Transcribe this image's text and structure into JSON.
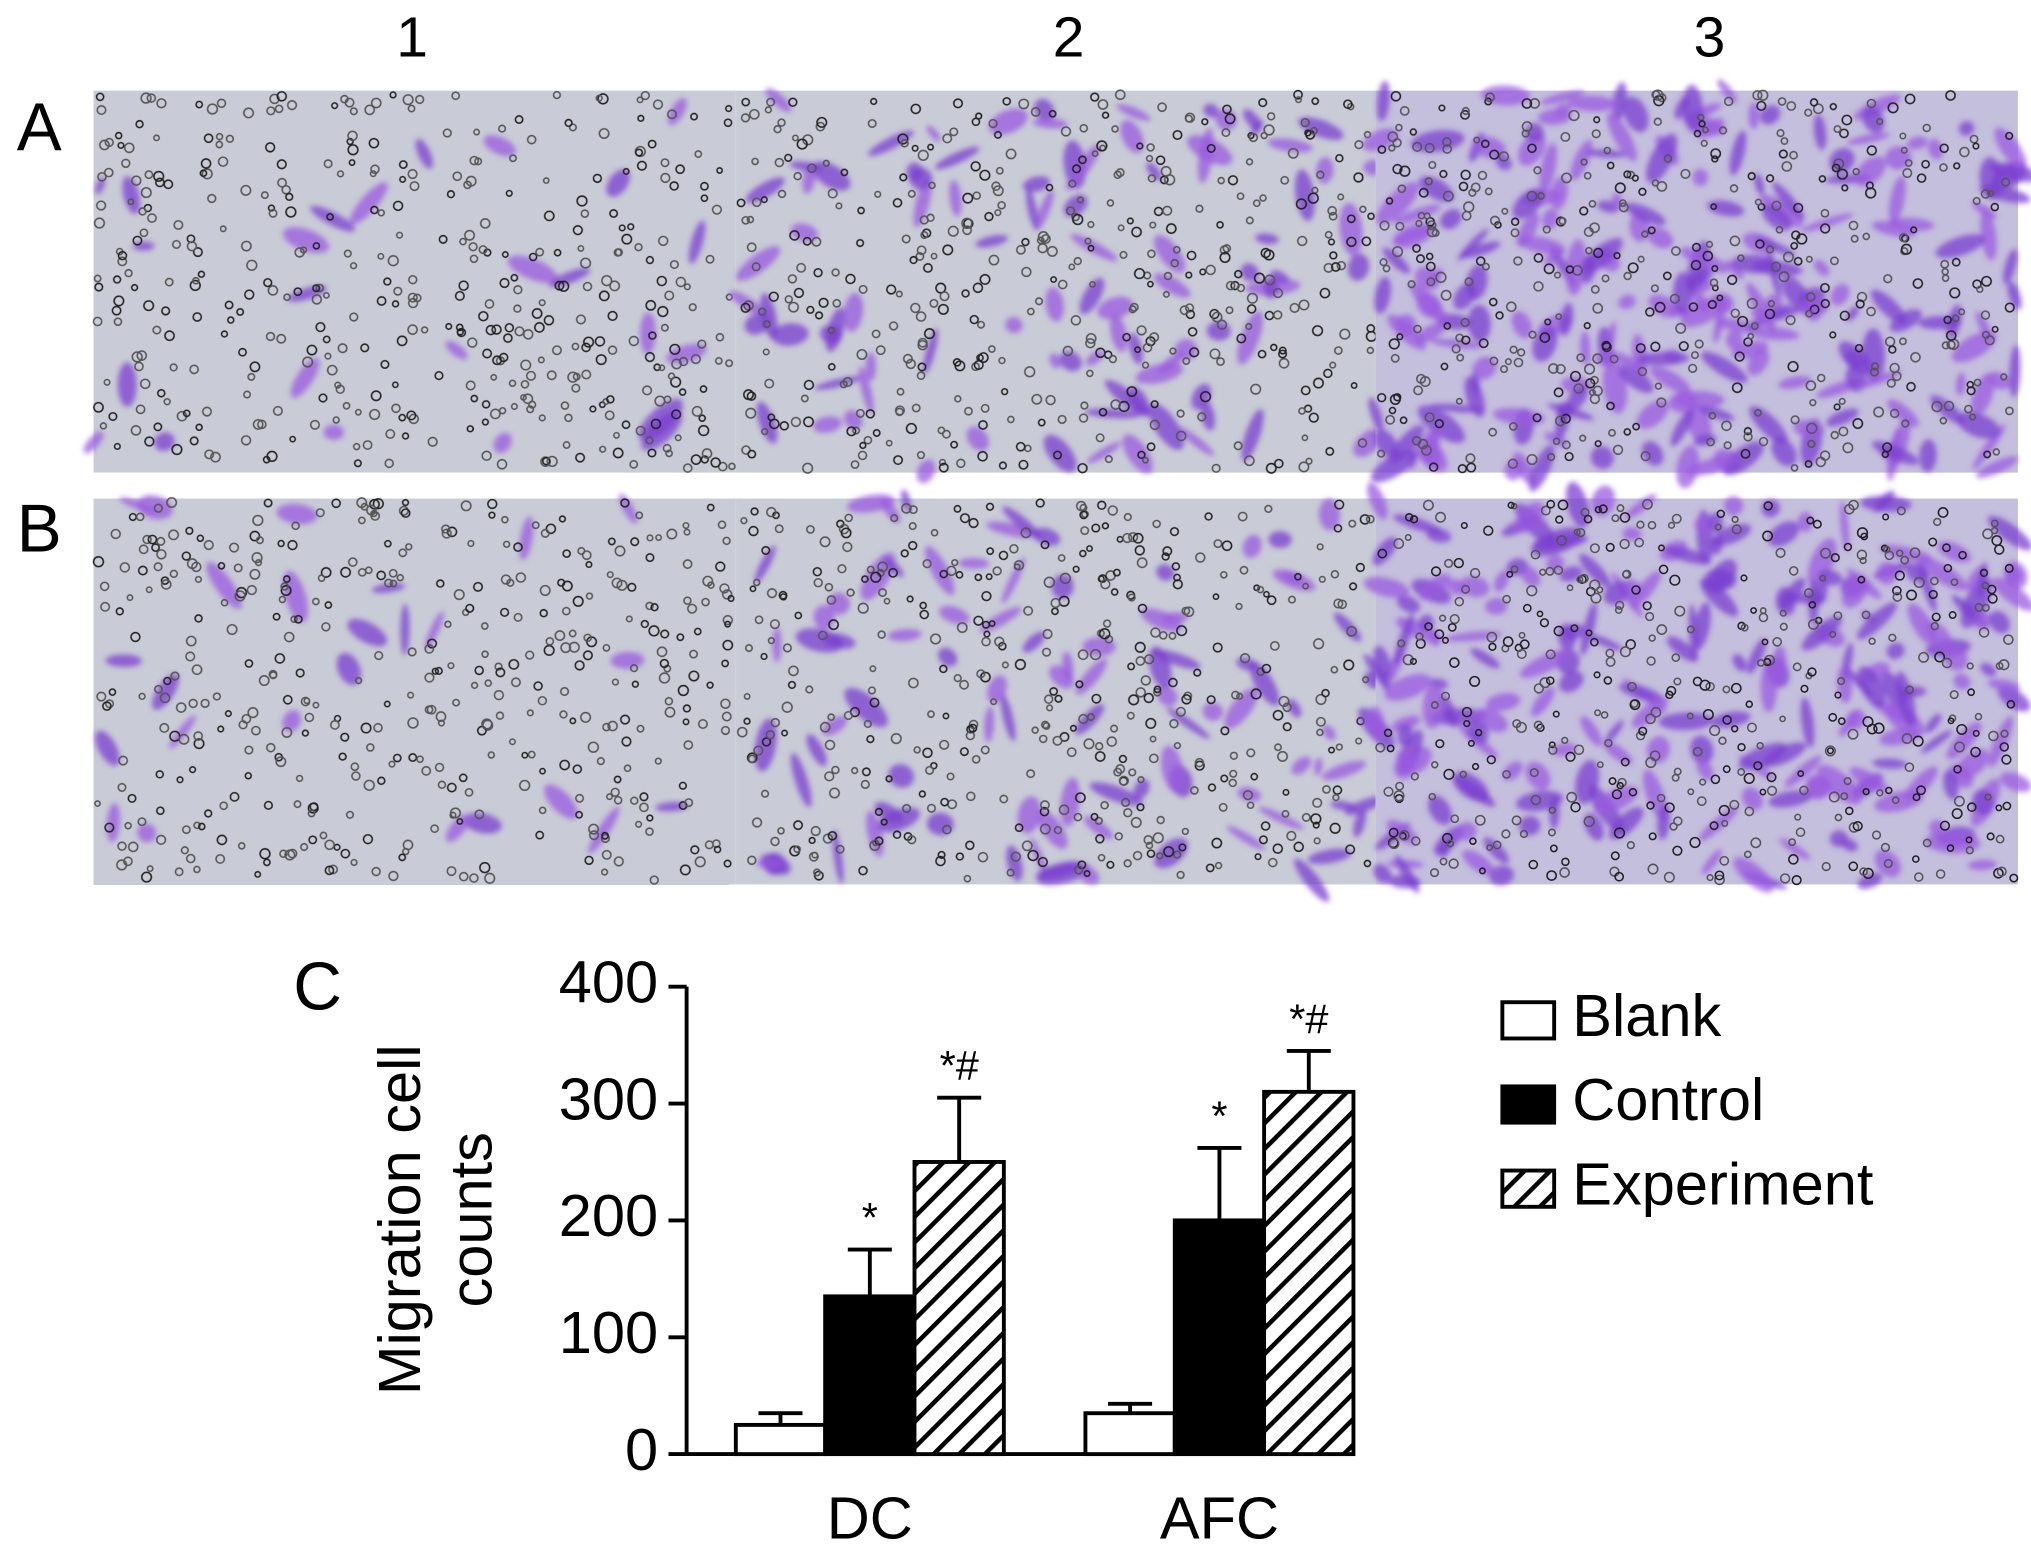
{
  "panels": {
    "columns": [
      "1",
      "2",
      "3"
    ],
    "rows": [
      "A",
      "B"
    ],
    "chart_label": "C"
  },
  "chart_data": {
    "type": "bar",
    "ylabel": [
      "Migration cell",
      "counts"
    ],
    "categories": [
      "DC",
      "AFC"
    ],
    "series": [
      {
        "name": "Blank",
        "color": "#ffffff",
        "values": [
          25,
          35
        ],
        "errors": [
          10,
          8
        ]
      },
      {
        "name": "Control",
        "color": "#000000",
        "values": [
          135,
          200
        ],
        "errors": [
          40,
          62
        ],
        "annotations": [
          "*",
          "*"
        ]
      },
      {
        "name": "Experiment",
        "color": "#000000",
        "hatch": true,
        "values": [
          250,
          310
        ],
        "errors": [
          55,
          35
        ],
        "annotations": [
          "*#",
          "*#"
        ]
      }
    ],
    "ylim": [
      0,
      400
    ],
    "yticks": [
      0,
      100,
      200,
      300,
      400
    ],
    "legend": "right"
  }
}
